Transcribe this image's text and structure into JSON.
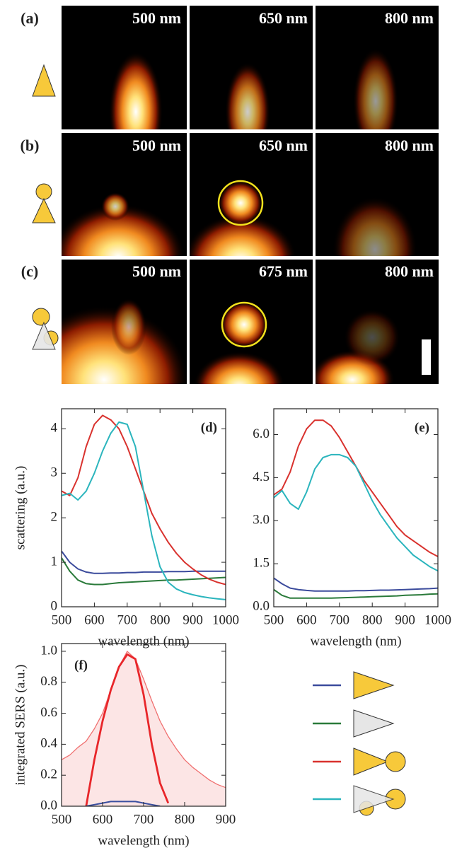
{
  "image_panels": {
    "rows": [
      {
        "label": "(a)",
        "wavelengths": [
          "500 nm",
          "650 nm",
          "800 nm"
        ]
      },
      {
        "label": "(b)",
        "wavelengths": [
          "500 nm",
          "650 nm",
          "800 nm"
        ]
      },
      {
        "label": "(c)",
        "wavelengths": [
          "500 nm",
          "675 nm",
          "800 nm"
        ]
      }
    ]
  },
  "chart_data": [
    {
      "type": "line",
      "panel_label": "(d)",
      "x_label": "wavelength (nm)",
      "y_label": "scattering (a.u.)",
      "x": [
        500,
        525,
        550,
        575,
        600,
        625,
        650,
        675,
        700,
        725,
        750,
        775,
        800,
        825,
        850,
        875,
        900,
        925,
        950,
        975,
        1000
      ],
      "xlim": [
        500,
        1000
      ],
      "xticks": [
        500,
        600,
        700,
        800,
        900,
        1000
      ],
      "ylim": [
        0,
        4.45
      ],
      "yticks": [
        0,
        1,
        2,
        3,
        4
      ],
      "series": [
        {
          "color": "#3b4b9c",
          "values": [
            1.25,
            1.0,
            0.85,
            0.78,
            0.75,
            0.75,
            0.76,
            0.76,
            0.77,
            0.77,
            0.78,
            0.78,
            0.78,
            0.79,
            0.79,
            0.79,
            0.8,
            0.8,
            0.8,
            0.8,
            0.8
          ]
        },
        {
          "color": "#2a7a3a",
          "values": [
            1.1,
            0.8,
            0.6,
            0.52,
            0.5,
            0.5,
            0.52,
            0.54,
            0.55,
            0.56,
            0.57,
            0.58,
            0.59,
            0.6,
            0.6,
            0.61,
            0.62,
            0.63,
            0.64,
            0.65,
            0.66
          ]
        },
        {
          "color": "#d9322e",
          "values": [
            2.6,
            2.5,
            2.9,
            3.6,
            4.1,
            4.3,
            4.2,
            4.0,
            3.6,
            3.1,
            2.6,
            2.1,
            1.75,
            1.45,
            1.2,
            1.0,
            0.85,
            0.72,
            0.62,
            0.55,
            0.5
          ]
        },
        {
          "color": "#2bb5bd",
          "values": [
            2.5,
            2.55,
            2.4,
            2.6,
            3.0,
            3.5,
            3.9,
            4.15,
            4.1,
            3.6,
            2.6,
            1.6,
            0.9,
            0.55,
            0.4,
            0.32,
            0.27,
            0.23,
            0.2,
            0.18,
            0.16
          ]
        }
      ]
    },
    {
      "type": "line",
      "panel_label": "(e)",
      "x_label": "wavelength (nm)",
      "x": [
        500,
        525,
        550,
        575,
        600,
        625,
        650,
        675,
        700,
        725,
        750,
        775,
        800,
        825,
        850,
        875,
        900,
        925,
        950,
        975,
        1000
      ],
      "xlim": [
        500,
        1000
      ],
      "xticks": [
        500,
        600,
        700,
        800,
        900,
        1000
      ],
      "ylim": [
        0,
        6.9
      ],
      "yticks": [
        {
          "value": 0,
          "label": "0.0"
        },
        {
          "value": 1.5,
          "label": "1.5"
        },
        {
          "value": 3,
          "label": "3.0"
        },
        {
          "value": 4.5,
          "label": "4.5"
        },
        {
          "value": 6,
          "label": "6.0"
        }
      ],
      "series": [
        {
          "color": "#3b4b9c",
          "values": [
            1.0,
            0.8,
            0.65,
            0.6,
            0.57,
            0.55,
            0.55,
            0.55,
            0.55,
            0.55,
            0.56,
            0.56,
            0.57,
            0.58,
            0.58,
            0.59,
            0.6,
            0.61,
            0.62,
            0.63,
            0.65
          ]
        },
        {
          "color": "#2a7a3a",
          "values": [
            0.6,
            0.4,
            0.3,
            0.3,
            0.3,
            0.3,
            0.3,
            0.3,
            0.31,
            0.32,
            0.33,
            0.34,
            0.35,
            0.36,
            0.37,
            0.38,
            0.4,
            0.41,
            0.42,
            0.44,
            0.45
          ]
        },
        {
          "color": "#d9322e",
          "values": [
            3.9,
            4.1,
            4.7,
            5.6,
            6.2,
            6.5,
            6.5,
            6.3,
            5.9,
            5.4,
            4.9,
            4.4,
            4.0,
            3.6,
            3.2,
            2.8,
            2.5,
            2.3,
            2.1,
            1.9,
            1.75
          ]
        },
        {
          "color": "#2bb5bd",
          "values": [
            3.8,
            4.05,
            3.6,
            3.4,
            4.0,
            4.8,
            5.2,
            5.3,
            5.3,
            5.2,
            4.9,
            4.3,
            3.7,
            3.2,
            2.8,
            2.4,
            2.1,
            1.8,
            1.6,
            1.4,
            1.25
          ]
        }
      ]
    },
    {
      "type": "line",
      "panel_label": "(f)",
      "x_label": "wavelength (nm)",
      "y_label": "integrated SERS (a.u.)",
      "x": [
        500,
        520,
        540,
        560,
        580,
        600,
        620,
        640,
        660,
        680,
        700,
        720,
        740,
        760,
        780,
        800,
        820,
        840,
        860,
        880,
        900
      ],
      "xlim": [
        500,
        900
      ],
      "xticks": [
        500,
        600,
        700,
        800,
        900
      ],
      "ylim": [
        0,
        1.05
      ],
      "yticks": [
        {
          "value": 0,
          "label": "0.0"
        },
        {
          "value": 0.2,
          "label": "0.2"
        },
        {
          "value": 0.4,
          "label": "0.4"
        },
        {
          "value": 0.6,
          "label": "0.6"
        },
        {
          "value": 0.8,
          "label": "0.8"
        },
        {
          "value": 1,
          "label": "1.0"
        }
      ],
      "series": [
        {
          "color": "#f07070",
          "area": true,
          "linewidth": 1.3,
          "values": [
            0.3,
            0.33,
            0.38,
            0.42,
            0.5,
            0.6,
            0.75,
            0.9,
            1.0,
            0.95,
            0.82,
            0.68,
            0.55,
            0.45,
            0.37,
            0.3,
            0.25,
            0.21,
            0.17,
            0.14,
            0.12
          ]
        },
        {
          "color": "#e8262a",
          "linewidth": 2.8,
          "values": [
            null,
            null,
            null,
            0.0,
            0.3,
            0.55,
            0.75,
            0.9,
            0.98,
            0.95,
            0.72,
            0.4,
            0.15,
            0.02,
            null,
            null,
            null,
            null,
            null,
            null,
            null
          ]
        },
        {
          "color": "#3a4fa0",
          "linewidth": 2,
          "values": [
            null,
            null,
            null,
            0.0,
            0.01,
            0.02,
            0.03,
            0.03,
            0.03,
            0.03,
            0.02,
            0.01,
            0.0,
            null,
            null,
            null,
            null,
            null,
            null,
            null,
            null
          ]
        }
      ]
    }
  ]
}
